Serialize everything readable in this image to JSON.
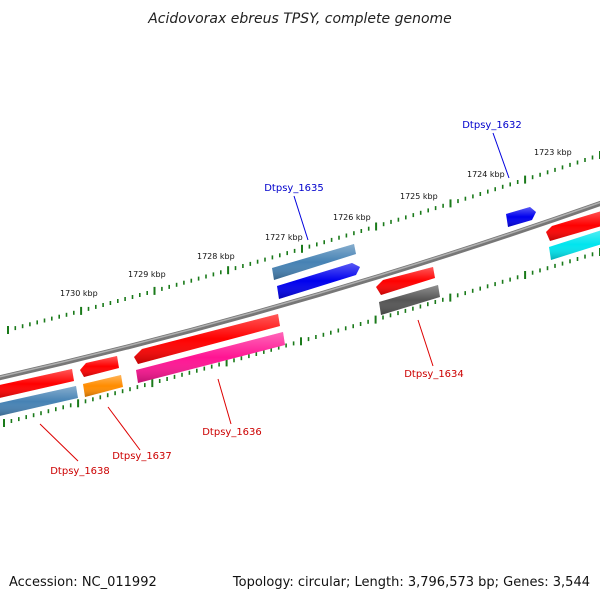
{
  "title": "Acidovorax ebreus TPSY, complete genome",
  "footer": {
    "accession": "Accession: NC_011992",
    "summary": "Topology: circular; Length: 3,796,573 bp; Genes: 3,544"
  },
  "colors": {
    "backbone": "#7a7a7a",
    "tick": "#1a7a1a",
    "label_forward": "#0000cc",
    "label_reverse": "#cc0000",
    "label_line_forward": "#0000dd",
    "label_line_reverse": "#dd0000"
  },
  "ticks": {
    "labeled": [
      "1723 kbp",
      "1724 kbp",
      "1725 kbp",
      "1726 kbp",
      "1727 kbp",
      "1728 kbp",
      "1729 kbp",
      "1730 kbp"
    ]
  },
  "genes": [
    {
      "id": "gene-1632",
      "label": "Dtpsy_1632",
      "color": "#0000ee",
      "strand": "forward"
    },
    {
      "id": "gene-1635",
      "label": "Dtpsy_1635",
      "color": "#0000ee",
      "strand": "forward"
    },
    {
      "id": "gene-1635b",
      "label": "",
      "color": "#4682b4",
      "strand": "forward"
    },
    {
      "id": "gene-1634",
      "label": "Dtpsy_1634",
      "color": "#ff0000",
      "strand": "reverse"
    },
    {
      "id": "gene-1634b",
      "label": "",
      "color": "#555555",
      "strand": "reverse"
    },
    {
      "id": "gene-1636",
      "label": "Dtpsy_1636",
      "color": "#ff0000",
      "strand": "reverse"
    },
    {
      "id": "gene-1636b",
      "label": "",
      "color": "#ff1493",
      "strand": "reverse"
    },
    {
      "id": "gene-1637",
      "label": "Dtpsy_1637",
      "color": "#ff0000",
      "strand": "reverse"
    },
    {
      "id": "gene-1637b",
      "label": "",
      "color": "#ff8c00",
      "strand": "reverse"
    },
    {
      "id": "gene-1638",
      "label": "Dtpsy_1638",
      "color": "#ff0000",
      "strand": "reverse"
    },
    {
      "id": "gene-1638b",
      "label": "",
      "color": "#4682b4",
      "strand": "reverse"
    },
    {
      "id": "gene-edge-red",
      "label": "",
      "color": "#ff0000",
      "strand": "reverse"
    },
    {
      "id": "gene-edge-cyan",
      "label": "",
      "color": "#00e5ee",
      "strand": "reverse"
    }
  ]
}
